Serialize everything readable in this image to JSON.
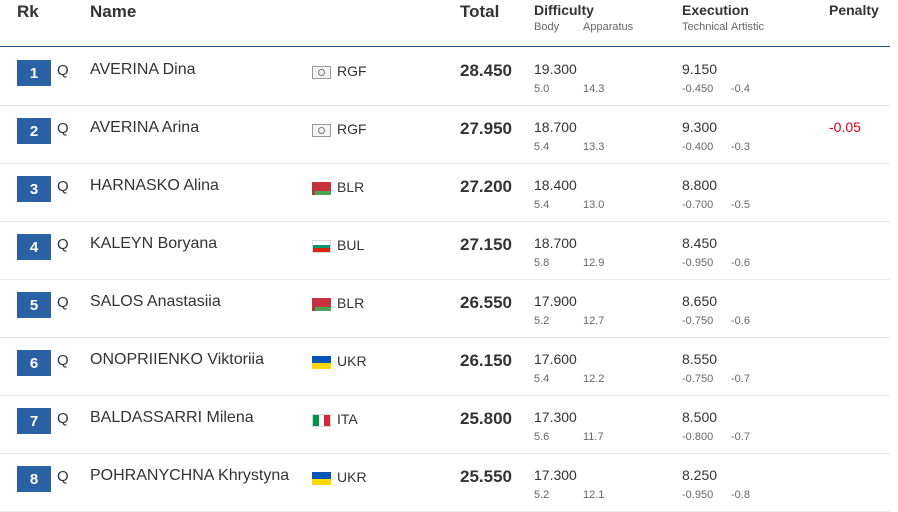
{
  "header": {
    "rk": "Rk",
    "name": "Name",
    "total": "Total",
    "difficulty": "Difficulty",
    "body": "Body",
    "apparatus": "Apparatus",
    "execution": "Execution",
    "technical": "Technical",
    "artistic": "Artistic",
    "penalty": "Penalty"
  },
  "colors": {
    "rank_badge": "#2a61a5",
    "penalty": "#d0021b",
    "header_rule": "#1e4b8f"
  },
  "rows": [
    {
      "rank": "1",
      "q": "Q",
      "name": "AVERINA Dina",
      "flag": "rgf-flag-icon",
      "noc": "RGF",
      "total": "28.450",
      "difficulty": "19.300",
      "body": "5.0",
      "apparatus": "14.3",
      "execution": "9.150",
      "technical": "-0.450",
      "artistic": "-0.4",
      "penalty": ""
    },
    {
      "rank": "2",
      "q": "Q",
      "name": "AVERINA Arina",
      "flag": "rgf-flag-icon",
      "noc": "RGF",
      "total": "27.950",
      "difficulty": "18.700",
      "body": "5.4",
      "apparatus": "13.3",
      "execution": "9.300",
      "technical": "-0.400",
      "artistic": "-0.3",
      "penalty": "-0.05"
    },
    {
      "rank": "3",
      "q": "Q",
      "name": "HARNASKO Alina",
      "flag": "belarus-flag-icon",
      "noc": "BLR",
      "total": "27.200",
      "difficulty": "18.400",
      "body": "5.4",
      "apparatus": "13.0",
      "execution": "8.800",
      "technical": "-0.700",
      "artistic": "-0.5",
      "penalty": ""
    },
    {
      "rank": "4",
      "q": "Q",
      "name": "KALEYN Boryana",
      "flag": "bulgaria-flag-icon",
      "noc": "BUL",
      "total": "27.150",
      "difficulty": "18.700",
      "body": "5.8",
      "apparatus": "12.9",
      "execution": "8.450",
      "technical": "-0.950",
      "artistic": "-0.6",
      "penalty": ""
    },
    {
      "rank": "5",
      "q": "Q",
      "name": "SALOS Anastasiia",
      "flag": "belarus-flag-icon",
      "noc": "BLR",
      "total": "26.550",
      "difficulty": "17.900",
      "body": "5.2",
      "apparatus": "12.7",
      "execution": "8.650",
      "technical": "-0.750",
      "artistic": "-0.6",
      "penalty": ""
    },
    {
      "rank": "6",
      "q": "Q",
      "name": "ONOPRIIENKO Viktoriia",
      "flag": "ukraine-flag-icon",
      "noc": "UKR",
      "total": "26.150",
      "difficulty": "17.600",
      "body": "5.4",
      "apparatus": "12.2",
      "execution": "8.550",
      "technical": "-0.750",
      "artistic": "-0.7",
      "penalty": ""
    },
    {
      "rank": "7",
      "q": "Q",
      "name": "BALDASSARRI Milena",
      "flag": "italy-flag-icon",
      "noc": "ITA",
      "total": "25.800",
      "difficulty": "17.300",
      "body": "5.6",
      "apparatus": "11.7",
      "execution": "8.500",
      "technical": "-0.800",
      "artistic": "-0.7",
      "penalty": ""
    },
    {
      "rank": "8",
      "q": "Q",
      "name": "POHRANYCHNA Khrystyna",
      "flag": "ukraine-flag-icon",
      "noc": "UKR",
      "total": "25.550",
      "difficulty": "17.300",
      "body": "5.2",
      "apparatus": "12.1",
      "execution": "8.250",
      "technical": "-0.950",
      "artistic": "-0.8",
      "penalty": ""
    }
  ]
}
